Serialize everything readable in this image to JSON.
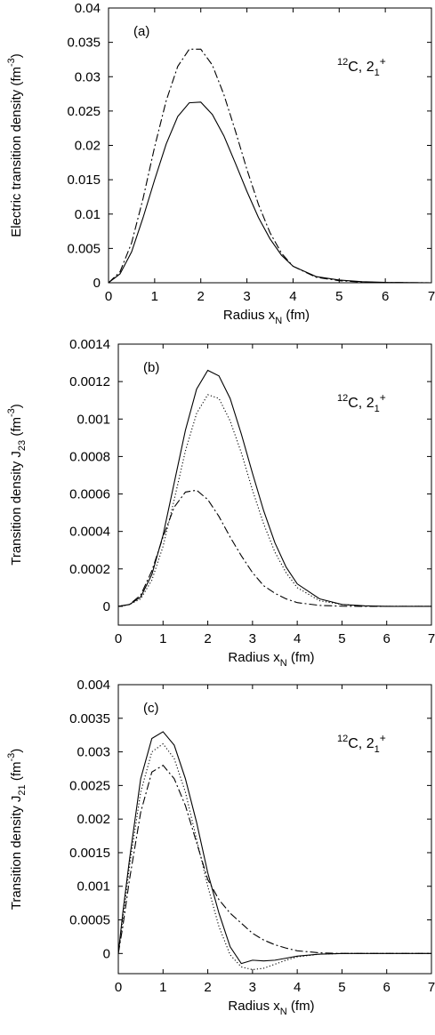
{
  "chart_data": [
    {
      "type": "line",
      "panel_label": "(a)",
      "annotation": {
        "nucleus": "12",
        "element": "C, 2",
        "sub": "1",
        "sup": "+"
      },
      "xlabel": {
        "text": "Radius  x",
        "sub": "N",
        "tail": "  (fm)"
      },
      "ylabel": {
        "text": "Electric transition density  (fm",
        "sup": "-3",
        "tail": ")"
      },
      "xlim": [
        0,
        7
      ],
      "ylim": [
        0,
        0.04
      ],
      "xticks": [
        0,
        1,
        2,
        3,
        4,
        5,
        6,
        7
      ],
      "xtick_labels": [
        "0",
        "1",
        "2",
        "3",
        "4",
        "5",
        "6",
        "7"
      ],
      "yticks": [
        0,
        0.005,
        0.01,
        0.015,
        0.02,
        0.025,
        0.03,
        0.035,
        0.04
      ],
      "ytick_labels": [
        "0",
        "0.005",
        "0.01",
        "0.015",
        "0.02",
        "0.025",
        "0.03",
        "0.035",
        "0.04"
      ],
      "series": [
        {
          "style": "solid",
          "x": [
            0,
            0.25,
            0.5,
            0.75,
            1.0,
            1.25,
            1.5,
            1.75,
            2.0,
            2.25,
            2.5,
            2.75,
            3.0,
            3.25,
            3.5,
            3.75,
            4.0,
            4.5,
            5.0,
            5.5,
            6.0,
            7.0
          ],
          "y": [
            0,
            0.0013,
            0.0045,
            0.0095,
            0.015,
            0.0202,
            0.0242,
            0.0262,
            0.0263,
            0.0245,
            0.0214,
            0.0174,
            0.0133,
            0.0095,
            0.0064,
            0.004,
            0.0024,
            0.0009,
            0.0004,
            0.00015,
            5e-05,
            0
          ]
        },
        {
          "style": "dashdot",
          "x": [
            0,
            0.25,
            0.5,
            0.75,
            1.0,
            1.25,
            1.5,
            1.75,
            2.0,
            2.25,
            2.5,
            2.75,
            3.0,
            3.25,
            3.5,
            3.75,
            4.0,
            4.5,
            5.0,
            5.5,
            6.0,
            7.0
          ],
          "y": [
            0,
            0.0016,
            0.0058,
            0.0123,
            0.0198,
            0.0265,
            0.0315,
            0.034,
            0.034,
            0.0317,
            0.0274,
            0.0221,
            0.0165,
            0.0114,
            0.0073,
            0.0043,
            0.0024,
            0.0008,
            0.0003,
            0.0001,
            3e-05,
            0
          ]
        }
      ]
    },
    {
      "type": "line",
      "panel_label": "(b)",
      "annotation": {
        "nucleus": "12",
        "element": "C, 2",
        "sub": "1",
        "sup": "+"
      },
      "xlabel": {
        "text": "Radius  x",
        "sub": "N",
        "tail": "  (fm)"
      },
      "ylabel": {
        "text": "Transition density  J",
        "sub": "23",
        "mid": "  (fm",
        "sup": "-3",
        "tail": ")"
      },
      "xlim": [
        0,
        7
      ],
      "ylim": [
        -0.0001,
        0.0014
      ],
      "xticks": [
        0,
        1,
        2,
        3,
        4,
        5,
        6,
        7
      ],
      "xtick_labels": [
        "0",
        "1",
        "2",
        "3",
        "4",
        "5",
        "6",
        "7"
      ],
      "yticks": [
        0,
        0.0002,
        0.0004,
        0.0006,
        0.0008,
        0.001,
        0.0012,
        0.0014
      ],
      "ytick_labels": [
        "0",
        "0.0002",
        "0.0004",
        "0.0006",
        "0.0008",
        "0.001",
        "0.0012",
        "0.0014"
      ],
      "series": [
        {
          "style": "solid",
          "x": [
            0,
            0.25,
            0.5,
            0.75,
            1.0,
            1.25,
            1.5,
            1.75,
            2.0,
            2.25,
            2.5,
            2.75,
            3.0,
            3.25,
            3.5,
            3.75,
            4.0,
            4.5,
            5.0,
            5.5,
            6.0,
            7.0
          ],
          "y": [
            0,
            1e-05,
            5e-05,
            0.00017,
            0.00038,
            0.00066,
            0.00094,
            0.00116,
            0.00126,
            0.00123,
            0.00111,
            0.00092,
            0.00071,
            0.00051,
            0.00034,
            0.00021,
            0.00012,
            4e-05,
            1e-05,
            3e-06,
            0,
            0
          ]
        },
        {
          "style": "dotted",
          "x": [
            0,
            0.25,
            0.5,
            0.75,
            1.0,
            1.25,
            1.5,
            1.75,
            2.0,
            2.25,
            2.5,
            2.75,
            3.0,
            3.25,
            3.5,
            3.75,
            4.0,
            4.5,
            5.0,
            5.5,
            6.0,
            7.0
          ],
          "y": [
            0,
            1e-05,
            4e-05,
            0.00014,
            0.00032,
            0.00057,
            0.00083,
            0.00103,
            0.00113,
            0.00111,
            0.00099,
            0.00082,
            0.00062,
            0.00044,
            0.00029,
            0.00018,
            0.0001,
            3e-05,
            1e-05,
            2e-06,
            0,
            0
          ]
        },
        {
          "style": "dashdot",
          "x": [
            0,
            0.25,
            0.5,
            0.75,
            1.0,
            1.25,
            1.5,
            1.75,
            2.0,
            2.25,
            2.5,
            2.75,
            3.0,
            3.25,
            3.5,
            3.75,
            4.0,
            4.5,
            5.0,
            5.5,
            6.0,
            7.0
          ],
          "y": [
            0,
            1e-05,
            6e-05,
            0.00019,
            0.00037,
            0.00053,
            0.00061,
            0.00062,
            0.00057,
            0.00048,
            0.00037,
            0.00027,
            0.00018,
            0.00011,
            7e-05,
            4e-05,
            2e-05,
            5e-06,
            1e-06,
            0,
            0,
            0
          ]
        }
      ]
    },
    {
      "type": "line",
      "panel_label": "(c)",
      "annotation": {
        "nucleus": "12",
        "element": "C, 2",
        "sub": "1",
        "sup": "+"
      },
      "xlabel": {
        "text": "Radius  x",
        "sub": "N",
        "tail": "  (fm)"
      },
      "ylabel": {
        "text": "Transition density  J",
        "sub": "21",
        "mid": "  (fm",
        "sup": "-3",
        "tail": ")"
      },
      "xlim": [
        0,
        7
      ],
      "ylim": [
        -0.0003,
        0.004
      ],
      "xticks": [
        0,
        1,
        2,
        3,
        4,
        5,
        6,
        7
      ],
      "xtick_labels": [
        "0",
        "1",
        "2",
        "3",
        "4",
        "5",
        "6",
        "7"
      ],
      "yticks": [
        0,
        0.0005,
        0.001,
        0.0015,
        0.002,
        0.0025,
        0.003,
        0.0035,
        0.004
      ],
      "ytick_labels": [
        "0",
        "0.0005",
        "0.001",
        "0.0015",
        "0.002",
        "0.0025",
        "0.003",
        "0.0035",
        "0.004"
      ],
      "series": [
        {
          "style": "solid",
          "x": [
            0,
            0.1,
            0.25,
            0.5,
            0.75,
            1.0,
            1.25,
            1.5,
            1.75,
            2.0,
            2.25,
            2.5,
            2.75,
            3.0,
            3.25,
            3.5,
            3.75,
            4.0,
            4.5,
            5.0,
            6.0,
            7.0
          ],
          "y": [
            0,
            0.0006,
            0.0014,
            0.0026,
            0.0032,
            0.0033,
            0.0031,
            0.0026,
            0.00195,
            0.0012,
            0.0006,
            0.0001,
            -0.00015,
            -0.0001,
            -0.00011,
            -0.0001,
            -7e-05,
            -4e-05,
            -1e-05,
            0,
            0,
            0
          ]
        },
        {
          "style": "dotted",
          "x": [
            0,
            0.1,
            0.25,
            0.5,
            0.75,
            1.0,
            1.25,
            1.5,
            1.75,
            2.0,
            2.25,
            2.5,
            2.75,
            3.0,
            3.25,
            3.5,
            3.75,
            4.0,
            4.5,
            5.0,
            6.0,
            7.0
          ],
          "y": [
            0,
            0.0005,
            0.0013,
            0.0024,
            0.003,
            0.00312,
            0.0029,
            0.0024,
            0.0017,
            0.001,
            0.0004,
            -2e-05,
            -0.0002,
            -0.00024,
            -0.00022,
            -0.00016,
            -0.0001,
            -5e-05,
            -1e-05,
            0,
            0,
            0
          ]
        },
        {
          "style": "dashdot",
          "x": [
            0,
            0.1,
            0.25,
            0.5,
            0.75,
            1.0,
            1.25,
            1.5,
            1.75,
            2.0,
            2.25,
            2.5,
            2.75,
            3.0,
            3.25,
            3.5,
            3.75,
            4.0,
            4.5,
            5.0,
            6.0,
            7.0
          ],
          "y": [
            0,
            0.0004,
            0.0011,
            0.0021,
            0.0027,
            0.0028,
            0.0026,
            0.0022,
            0.00165,
            0.0011,
            0.0008,
            0.0006,
            0.00045,
            0.0003,
            0.0002,
            0.00013,
            8e-05,
            4e-05,
            1e-05,
            0,
            0,
            0
          ]
        }
      ]
    }
  ]
}
